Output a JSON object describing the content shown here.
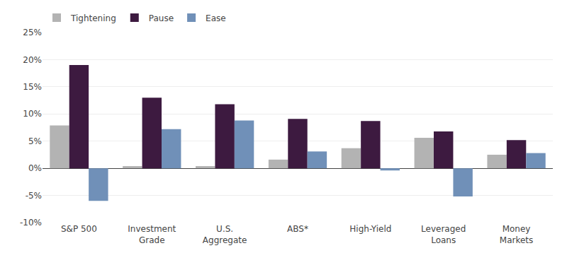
{
  "chart_data": {
    "type": "bar",
    "categories": [
      "S&P 500",
      "Investment\nGrade",
      "U.S.\nAggregate",
      "ABS*",
      "High-Yield",
      "Leveraged\nLoans",
      "Money\nMarkets"
    ],
    "series": [
      {
        "name": "Tightening",
        "color": "#b3b3b3",
        "values": [
          7.9,
          0.4,
          0.4,
          1.6,
          3.7,
          5.6,
          2.5
        ]
      },
      {
        "name": "Pause",
        "color": "#3d1a40",
        "values": [
          19.0,
          13.0,
          11.8,
          9.1,
          8.7,
          6.8,
          5.2
        ]
      },
      {
        "name": "Ease",
        "color": "#7090b8",
        "values": [
          -6.0,
          7.2,
          8.8,
          3.1,
          -0.4,
          -5.2,
          2.8
        ]
      }
    ],
    "ylim": [
      -10,
      25
    ],
    "yticks": [
      {
        "value": -10,
        "label": "-10%"
      },
      {
        "value": -5,
        "label": "-5%"
      },
      {
        "value": 0,
        "label": "0%"
      },
      {
        "value": 5,
        "label": "5%"
      },
      {
        "value": 10,
        "label": "10%"
      },
      {
        "value": 15,
        "label": "15%"
      },
      {
        "value": 20,
        "label": "20%"
      },
      {
        "value": 25,
        "label": "25%"
      }
    ],
    "grid": true,
    "legend": "upper left"
  }
}
